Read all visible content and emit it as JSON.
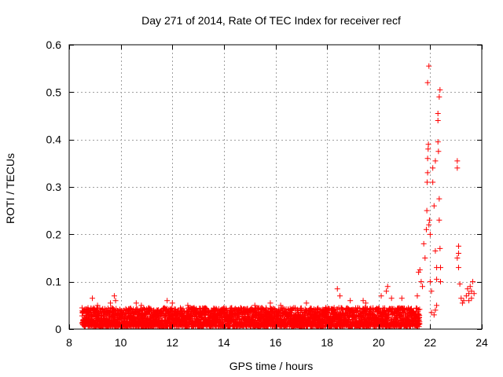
{
  "chart_data": {
    "type": "scatter",
    "title": "Day 271 of 2014, Rate Of TEC Index for receiver recf",
    "xlabel": "GPS time / hours",
    "ylabel": "ROTI / TECUs",
    "xlim": [
      8,
      24
    ],
    "ylim": [
      0,
      0.6
    ],
    "xticks": [
      8,
      10,
      12,
      14,
      16,
      18,
      20,
      22,
      24
    ],
    "yticks": [
      0,
      0.1,
      0.2,
      0.3,
      0.4,
      0.5,
      0.6
    ],
    "xtick_labels": [
      "8",
      "10",
      "12",
      "14",
      "16",
      "18",
      "20",
      "22",
      "24"
    ],
    "ytick_labels": [
      "0",
      "0.1",
      "0.2",
      "0.3",
      "0.4",
      "0.5",
      "0.6"
    ],
    "grid": true,
    "marker": "+",
    "color": "#ff0000",
    "series": [
      {
        "name": "ROTI",
        "note": "dense band of points 8.5-21.6 h at ~0.005-0.05 TECU/s, plus elevated points below",
        "band": {
          "x_start": 8.5,
          "x_end": 21.6,
          "y_min": 0.005,
          "y_max": 0.045
        },
        "points": [
          [
            8.9,
            0.065
          ],
          [
            9.1,
            0.05
          ],
          [
            9.6,
            0.055
          ],
          [
            9.75,
            0.07
          ],
          [
            9.8,
            0.06
          ],
          [
            10.6,
            0.055
          ],
          [
            10.8,
            0.05
          ],
          [
            11.8,
            0.06
          ],
          [
            12.0,
            0.055
          ],
          [
            12.6,
            0.05
          ],
          [
            15.2,
            0.05
          ],
          [
            15.8,
            0.055
          ],
          [
            16.2,
            0.05
          ],
          [
            17.2,
            0.055
          ],
          [
            18.4,
            0.085
          ],
          [
            18.5,
            0.07
          ],
          [
            18.9,
            0.06
          ],
          [
            19.4,
            0.06
          ],
          [
            19.5,
            0.055
          ],
          [
            20.1,
            0.07
          ],
          [
            20.3,
            0.08
          ],
          [
            20.35,
            0.09
          ],
          [
            20.5,
            0.065
          ],
          [
            20.9,
            0.065
          ],
          [
            21.5,
            0.07
          ],
          [
            21.55,
            0.12
          ],
          [
            21.6,
            0.125
          ],
          [
            21.65,
            0.1
          ],
          [
            21.7,
            0.09
          ],
          [
            21.75,
            0.18
          ],
          [
            21.8,
            0.15
          ],
          [
            21.85,
            0.21
          ],
          [
            21.87,
            0.25
          ],
          [
            21.88,
            0.31
          ],
          [
            21.9,
            0.33
          ],
          [
            21.9,
            0.36
          ],
          [
            21.92,
            0.38
          ],
          [
            21.93,
            0.39
          ],
          [
            21.9,
            0.52
          ],
          [
            21.95,
            0.555
          ],
          [
            21.95,
            0.22
          ],
          [
            21.97,
            0.23
          ],
          [
            22.0,
            0.2
          ],
          [
            22.0,
            0.1
          ],
          [
            22.05,
            0.08
          ],
          [
            22.1,
            0.31
          ],
          [
            22.1,
            0.34
          ],
          [
            22.15,
            0.26
          ],
          [
            22.2,
            0.355
          ],
          [
            22.2,
            0.165
          ],
          [
            22.25,
            0.13
          ],
          [
            22.25,
            0.105
          ],
          [
            22.3,
            0.44
          ],
          [
            22.3,
            0.455
          ],
          [
            22.3,
            0.395
          ],
          [
            22.32,
            0.375
          ],
          [
            22.35,
            0.275
          ],
          [
            22.35,
            0.23
          ],
          [
            22.35,
            0.49
          ],
          [
            22.38,
            0.505
          ],
          [
            22.38,
            0.17
          ],
          [
            22.4,
            0.13
          ],
          [
            22.4,
            0.1
          ],
          [
            22.2,
            0.04
          ],
          [
            22.15,
            0.03
          ],
          [
            22.05,
            0.035
          ],
          [
            22.25,
            0.05
          ],
          [
            23.05,
            0.355
          ],
          [
            23.05,
            0.34
          ],
          [
            23.1,
            0.175
          ],
          [
            23.1,
            0.16
          ],
          [
            23.05,
            0.15
          ],
          [
            23.1,
            0.13
          ],
          [
            23.15,
            0.095
          ],
          [
            23.2,
            0.065
          ],
          [
            23.25,
            0.055
          ],
          [
            23.3,
            0.06
          ],
          [
            23.4,
            0.07
          ],
          [
            23.45,
            0.085
          ],
          [
            23.5,
            0.075
          ],
          [
            23.55,
            0.09
          ],
          [
            23.6,
            0.08
          ],
          [
            23.65,
            0.1
          ],
          [
            23.7,
            0.075
          ],
          [
            23.6,
            0.065
          ],
          [
            23.5,
            0.06
          ]
        ]
      }
    ]
  }
}
